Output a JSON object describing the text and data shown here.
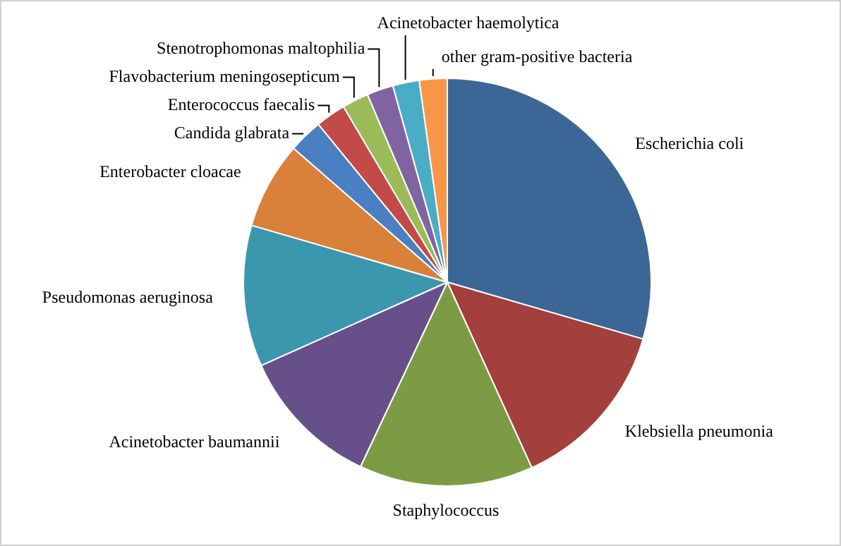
{
  "chart_data": {
    "type": "pie",
    "categories": [
      "Escherichia coli",
      "Klebsiella pneumonia",
      "Staphylococcus",
      "Acinetobacter baumannii",
      "Pseudomonas aeruginosa",
      "Enterobacter cloacae",
      "Candida glabrata",
      "Enterococcus faecalis",
      "Flavobacterium meningosepticum",
      "Stenotrophomonas maltophilia",
      "Acinetobacter haemolytica",
      "other gram-positive bacteria"
    ],
    "values": [
      29.5,
      13.7,
      13.8,
      11.3,
      11.2,
      6.9,
      2.7,
      2.4,
      2.1,
      2.1,
      2.1,
      2.2
    ],
    "colors": [
      "#3c6696",
      "#a33f3c",
      "#7d9b44",
      "#67508a",
      "#3b97ae",
      "#d9803a",
      "#4a7fc1",
      "#c24a47",
      "#9bbb59",
      "#8064a2",
      "#4bacc6",
      "#f79646"
    ],
    "legend": false
  }
}
